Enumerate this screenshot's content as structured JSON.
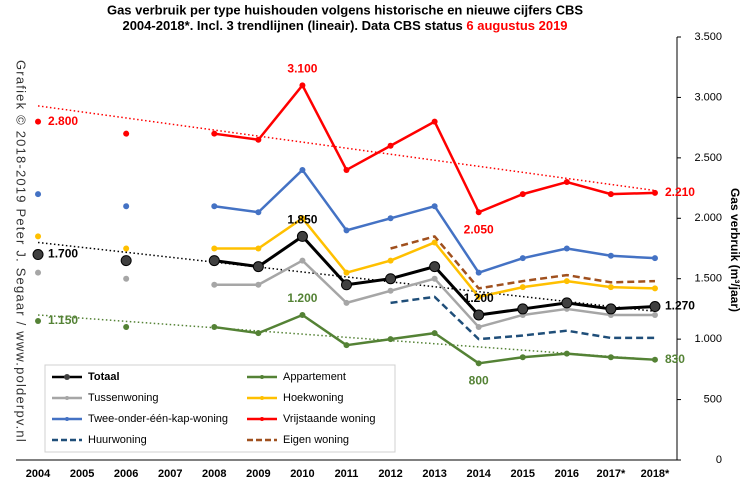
{
  "chart_data": {
    "type": "line",
    "title": "Gas verbruik per type huishouden volgens historische en nieuwe cijfers CBS",
    "subtitle": "2004-2018*. Incl. 3 trendlijnen (lineair). Data CBS status ",
    "subtitle_highlight": "6 augustus 2019",
    "y_axis_label": "Gas verbruik (m³/jaar)",
    "watermark": "Grafiek © 2018-2019 Peter J. Segaar / www.polderpv.nl",
    "categories": [
      "2004",
      "2005",
      "2006",
      "2007",
      "2008",
      "2009",
      "2010",
      "2011",
      "2012",
      "2013",
      "2014",
      "2015",
      "2016",
      "2017*",
      "2018*"
    ],
    "ylim": [
      0,
      3500
    ],
    "yticks": [
      0,
      500,
      {
        "value": 1000,
        "label": "1.000"
      },
      {
        "value": 1500,
        "label": "1.500"
      },
      {
        "value": 2000,
        "label": "2.000"
      },
      {
        "value": 2500,
        "label": "2.500"
      },
      {
        "value": 3000,
        "label": "3.000"
      },
      {
        "value": 3500,
        "label": "3.500"
      }
    ],
    "series": [
      {
        "name": "Totaal",
        "color": "#000000",
        "values": [
          1700,
          null,
          1650,
          null,
          1650,
          1600,
          1850,
          1450,
          1500,
          1600,
          1200,
          1250,
          1300,
          1250,
          1270
        ],
        "value_labels": [
          "1.700",
          null,
          null,
          null,
          null,
          null,
          "1.850",
          null,
          null,
          null,
          "1.200",
          null,
          null,
          null,
          "1.270"
        ]
      },
      {
        "name": "Appartement",
        "color": "#548235",
        "values": [
          1150,
          null,
          1100,
          null,
          1100,
          1050,
          1200,
          950,
          1000,
          1050,
          800,
          850,
          880,
          850,
          830
        ],
        "value_labels": [
          "1.150",
          null,
          null,
          null,
          null,
          null,
          "1.200",
          null,
          null,
          null,
          "800",
          null,
          null,
          null,
          "830"
        ]
      },
      {
        "name": "Tussenwoning",
        "color": "#a6a6a6",
        "values": [
          1550,
          null,
          1500,
          null,
          1450,
          1450,
          1650,
          1300,
          1400,
          1500,
          1100,
          1200,
          1250,
          1200,
          1200
        ]
      },
      {
        "name": "Hoekwoning",
        "color": "#ffc000",
        "values": [
          1850,
          null,
          1750,
          null,
          1750,
          1750,
          2000,
          1550,
          1650,
          1800,
          1350,
          1430,
          1480,
          1430,
          1420
        ]
      },
      {
        "name": "Twee-onder-één-kap-woning",
        "color": "#4472c4",
        "values": [
          2200,
          null,
          2100,
          null,
          2100,
          2050,
          2400,
          1900,
          2000,
          2100,
          1550,
          1670,
          1750,
          1690,
          1670
        ]
      },
      {
        "name": "Vrijstaande woning",
        "color": "#ff0000",
        "values": [
          2800,
          null,
          2700,
          null,
          2700,
          2650,
          3100,
          2400,
          2600,
          2800,
          2050,
          2200,
          2300,
          2200,
          2210
        ],
        "value_labels": [
          "2.800",
          null,
          null,
          null,
          null,
          null,
          "3.100",
          null,
          null,
          null,
          "2.050",
          null,
          null,
          null,
          "2.210"
        ]
      },
      {
        "name": "Huurwoning",
        "color": "#1f4e79",
        "dashed": true,
        "values": [
          null,
          null,
          null,
          null,
          null,
          null,
          null,
          null,
          1300,
          1350,
          1000,
          1030,
          1070,
          1010,
          1010
        ]
      },
      {
        "name": "Eigen woning",
        "color": "#a0501e",
        "dashed": true,
        "values": [
          null,
          null,
          null,
          null,
          null,
          null,
          null,
          null,
          1750,
          1850,
          1420,
          1480,
          1530,
          1470,
          1480
        ]
      }
    ],
    "trendlines": [
      {
        "color": "#ff0000",
        "values": [
          2930,
          2230
        ]
      },
      {
        "color": "#000000",
        "values": [
          1800,
          1230
        ]
      },
      {
        "color": "#548235",
        "values": [
          1200,
          830
        ]
      }
    ]
  }
}
